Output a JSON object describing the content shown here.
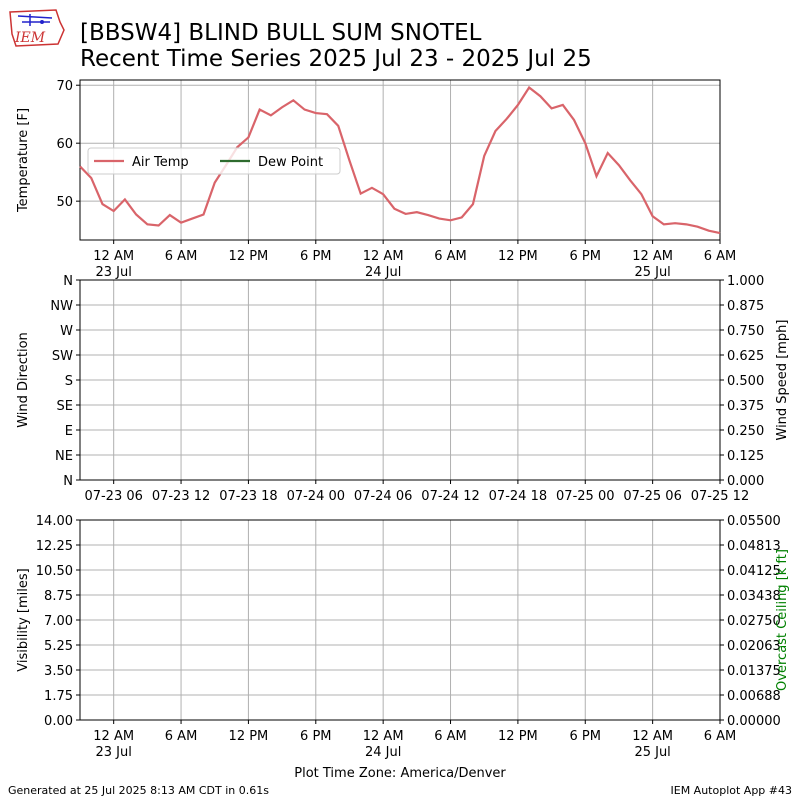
{
  "header": {
    "title": "[BBSW4] BLIND BULL SUM SNOTEL",
    "subtitle": "Recent Time Series 2025 Jul 23 - 2025 Jul 25",
    "logo": "IEM"
  },
  "chart_data": [
    {
      "type": "line",
      "y_label": "Temperature [F]",
      "x": [
        "2025-07-22T21:00",
        "2025-07-22T22:00",
        "2025-07-22T23:00",
        "2025-07-23T00:00",
        "2025-07-23T01:00",
        "2025-07-23T02:00",
        "2025-07-23T03:00",
        "2025-07-23T04:00",
        "2025-07-23T05:00",
        "2025-07-23T06:00",
        "2025-07-23T07:00",
        "2025-07-23T08:00",
        "2025-07-23T09:00",
        "2025-07-23T10:00",
        "2025-07-23T11:00",
        "2025-07-23T12:00",
        "2025-07-23T13:00",
        "2025-07-23T14:00",
        "2025-07-23T15:00",
        "2025-07-23T16:00",
        "2025-07-23T17:00",
        "2025-07-23T18:00",
        "2025-07-23T19:00",
        "2025-07-23T20:00",
        "2025-07-23T21:00",
        "2025-07-23T22:00",
        "2025-07-23T23:00",
        "2025-07-24T00:00",
        "2025-07-24T01:00",
        "2025-07-24T02:00",
        "2025-07-24T03:00",
        "2025-07-24T04:00",
        "2025-07-24T05:00",
        "2025-07-24T06:00",
        "2025-07-24T07:00",
        "2025-07-24T08:00",
        "2025-07-24T09:00",
        "2025-07-24T10:00",
        "2025-07-24T11:00",
        "2025-07-24T12:00",
        "2025-07-24T13:00",
        "2025-07-24T14:00",
        "2025-07-24T15:00",
        "2025-07-24T16:00",
        "2025-07-24T17:00",
        "2025-07-24T18:00",
        "2025-07-24T19:00",
        "2025-07-24T20:00",
        "2025-07-24T21:00",
        "2025-07-24T22:00",
        "2025-07-24T23:00",
        "2025-07-25T00:00",
        "2025-07-25T01:00",
        "2025-07-25T02:00",
        "2025-07-25T03:00",
        "2025-07-25T04:00",
        "2025-07-25T05:00",
        "2025-07-25T06:00"
      ],
      "series": [
        {
          "name": "Air Temp",
          "color": "#d9646a",
          "values": [
            56,
            54,
            49.5,
            48.3,
            50.3,
            47.7,
            46,
            45.8,
            47.6,
            46.3,
            47,
            47.7,
            53.2,
            56.2,
            59.3,
            61,
            65.8,
            64.8,
            66.2,
            67.4,
            65.8,
            65.2,
            65,
            63,
            57,
            51.3,
            52.3,
            51.2,
            48.7,
            47.8,
            48.1,
            47.6,
            47,
            46.7,
            47.2,
            49.5,
            57.8,
            62.1,
            64.2,
            66.6,
            69.6,
            68.1,
            66,
            66.6,
            64,
            60,
            54.3,
            58.3,
            56.2,
            53.6,
            51.2,
            47.4,
            46,
            46.2,
            46,
            45.6,
            44.9,
            44.5
          ]
        },
        {
          "name": "Dew Point",
          "color": "#2e6b2e",
          "values": [
            null,
            null,
            null,
            null,
            null,
            null,
            null,
            null,
            null,
            null,
            null,
            null,
            null,
            null,
            null,
            null,
            null,
            null,
            null,
            null,
            null,
            null,
            null,
            null,
            null,
            null,
            null,
            null,
            null,
            null,
            null,
            null,
            null,
            null,
            null,
            null,
            null,
            null,
            null,
            null,
            null,
            null,
            null,
            null,
            null,
            null,
            null,
            null,
            null,
            null,
            null,
            null,
            null,
            null,
            null,
            null,
            null,
            null
          ]
        }
      ],
      "xlim": [
        "2025-07-22T21:00",
        "2025-07-25T06:00"
      ],
      "xticks": [
        {
          "value": "2025-07-23T00:00",
          "label": "12 AM\n23 Jul"
        },
        {
          "value": "2025-07-23T06:00",
          "label": "6 AM"
        },
        {
          "value": "2025-07-23T12:00",
          "label": "12 PM"
        },
        {
          "value": "2025-07-23T18:00",
          "label": "6 PM"
        },
        {
          "value": "2025-07-24T00:00",
          "label": "12 AM\n24 Jul"
        },
        {
          "value": "2025-07-24T06:00",
          "label": "6 AM"
        },
        {
          "value": "2025-07-24T12:00",
          "label": "12 PM"
        },
        {
          "value": "2025-07-24T18:00",
          "label": "6 PM"
        },
        {
          "value": "2025-07-25T00:00",
          "label": "12 AM\n25 Jul"
        },
        {
          "value": "2025-07-25T06:00",
          "label": "6 AM"
        }
      ],
      "ylim": [
        43.3,
        70.9
      ],
      "yticks": [
        50,
        60,
        70
      ],
      "grid": true,
      "legend": "center left"
    },
    {
      "type": "line",
      "y_label": "Wind Direction",
      "y2_label": "Wind Speed [mph]",
      "series": [],
      "xlim": [
        "2025-07-22T21:00",
        "2025-07-25T06:00"
      ],
      "xticks": [
        {
          "value": "2025-07-23T00:00",
          "label": "07-23 06"
        },
        {
          "value": "2025-07-23T06:00",
          "label": "07-23 12"
        },
        {
          "value": "2025-07-23T12:00",
          "label": "07-23 18"
        },
        {
          "value": "2025-07-23T18:00",
          "label": "07-24 00"
        },
        {
          "value": "2025-07-24T00:00",
          "label": "07-24 06"
        },
        {
          "value": "2025-07-24T06:00",
          "label": "07-24 12"
        },
        {
          "value": "2025-07-24T12:00",
          "label": "07-24 18"
        },
        {
          "value": "2025-07-24T18:00",
          "label": "07-25 00"
        },
        {
          "value": "2025-07-25T00:00",
          "label": "07-25 06"
        },
        {
          "value": "2025-07-25T06:00",
          "label": "07-25 12"
        }
      ],
      "ylim": [
        0,
        360
      ],
      "yticks": [
        {
          "value": 0,
          "label": "N"
        },
        {
          "value": 45,
          "label": "NE"
        },
        {
          "value": 90,
          "label": "E"
        },
        {
          "value": 135,
          "label": "SE"
        },
        {
          "value": 180,
          "label": "S"
        },
        {
          "value": 225,
          "label": "SW"
        },
        {
          "value": 270,
          "label": "W"
        },
        {
          "value": 315,
          "label": "NW"
        },
        {
          "value": 360,
          "label": "N"
        }
      ],
      "y2lim": [
        0,
        1
      ],
      "y2ticks": [
        {
          "value": 0,
          "label": "0.000"
        },
        {
          "value": 0.125,
          "label": "0.125"
        },
        {
          "value": 0.25,
          "label": "0.250"
        },
        {
          "value": 0.375,
          "label": "0.375"
        },
        {
          "value": 0.5,
          "label": "0.500"
        },
        {
          "value": 0.625,
          "label": "0.625"
        },
        {
          "value": 0.75,
          "label": "0.750"
        },
        {
          "value": 0.875,
          "label": "0.875"
        },
        {
          "value": 1,
          "label": "1.000"
        }
      ],
      "grid": true
    },
    {
      "type": "line",
      "y_label": "Visibility [miles]",
      "y2_label": "Overcast Ceiling [k ft]",
      "y2_label_color": "#008000",
      "x_label": "Plot Time Zone: America/Denver",
      "series": [],
      "xlim": [
        "2025-07-22T21:00",
        "2025-07-25T06:00"
      ],
      "xticks": [
        {
          "value": "2025-07-23T00:00",
          "label": "12 AM\n23 Jul"
        },
        {
          "value": "2025-07-23T06:00",
          "label": "6 AM"
        },
        {
          "value": "2025-07-23T12:00",
          "label": "12 PM"
        },
        {
          "value": "2025-07-23T18:00",
          "label": "6 PM"
        },
        {
          "value": "2025-07-24T00:00",
          "label": "12 AM\n24 Jul"
        },
        {
          "value": "2025-07-24T06:00",
          "label": "6 AM"
        },
        {
          "value": "2025-07-24T12:00",
          "label": "12 PM"
        },
        {
          "value": "2025-07-24T18:00",
          "label": "6 PM"
        },
        {
          "value": "2025-07-25T00:00",
          "label": "12 AM\n25 Jul"
        },
        {
          "value": "2025-07-25T06:00",
          "label": "6 AM"
        }
      ],
      "ylim": [
        0,
        14
      ],
      "yticks": [
        {
          "value": 0,
          "label": "0.00"
        },
        {
          "value": 1.75,
          "label": "1.75"
        },
        {
          "value": 3.5,
          "label": "3.50"
        },
        {
          "value": 5.25,
          "label": "5.25"
        },
        {
          "value": 7,
          "label": "7.00"
        },
        {
          "value": 8.75,
          "label": "8.75"
        },
        {
          "value": 10.5,
          "label": "10.50"
        },
        {
          "value": 12.25,
          "label": "12.25"
        },
        {
          "value": 14,
          "label": "14.00"
        }
      ],
      "y2lim": [
        0,
        0.055
      ],
      "y2ticks": [
        {
          "value": 0,
          "label": "0.00000"
        },
        {
          "value": 0.006875,
          "label": "0.00688"
        },
        {
          "value": 0.01375,
          "label": "0.01375"
        },
        {
          "value": 0.020625,
          "label": "0.02063"
        },
        {
          "value": 0.0275,
          "label": "0.02750"
        },
        {
          "value": 0.034375,
          "label": "0.03438"
        },
        {
          "value": 0.04125,
          "label": "0.04125"
        },
        {
          "value": 0.048125,
          "label": "0.04813"
        },
        {
          "value": 0.055,
          "label": "0.05500"
        }
      ],
      "grid": true
    }
  ],
  "footer": {
    "left": "Generated at 25 Jul 2025 8:13 AM CDT in 0.61s",
    "right": "IEM Autoplot App #43"
  }
}
